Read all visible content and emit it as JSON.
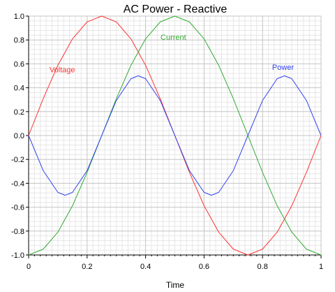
{
  "chart_data": {
    "type": "line",
    "title": "AC Power - Reactive",
    "xlabel": "Time",
    "ylabel": "",
    "xlim": [
      0,
      1
    ],
    "ylim": [
      -1.0,
      1.0
    ],
    "x_ticks": [
      0,
      0.2,
      0.4,
      0.6,
      0.8,
      1
    ],
    "x_tick_labels": [
      "0",
      "0.2",
      "0.4",
      "0.6",
      "0.8",
      "1"
    ],
    "y_ticks": [
      1.0,
      0.8,
      0.6,
      0.4,
      0.2,
      0.0,
      -0.2,
      -0.4,
      -0.6,
      -0.8,
      -1.0
    ],
    "y_tick_labels": [
      "1.0",
      "0.8",
      "0.6",
      "0.4",
      "0.2",
      "0.0",
      "-0.2",
      "-0.4",
      "-0.6",
      "-0.8",
      "-1.0"
    ],
    "grid": true,
    "legend": "none",
    "series": [
      {
        "name": "Voltage",
        "color": "#ff3333",
        "label_anchor": {
          "x": 0.115,
          "y": 0.53
        },
        "x": [
          0,
          0.05,
          0.1,
          0.15,
          0.2,
          0.25,
          0.3,
          0.35,
          0.4,
          0.45,
          0.5,
          0.55,
          0.6,
          0.65,
          0.7,
          0.75,
          0.8,
          0.85,
          0.9,
          0.95,
          1
        ],
        "values": [
          0,
          0.309,
          0.588,
          0.809,
          0.951,
          1.0,
          0.951,
          0.809,
          0.588,
          0.309,
          0,
          -0.309,
          -0.588,
          -0.809,
          -0.951,
          -1.0,
          -0.951,
          -0.809,
          -0.588,
          -0.309,
          0
        ]
      },
      {
        "name": "Current",
        "color": "#33aa33",
        "label_anchor": {
          "x": 0.495,
          "y": 0.8
        },
        "x": [
          0,
          0.05,
          0.1,
          0.15,
          0.2,
          0.25,
          0.3,
          0.35,
          0.4,
          0.45,
          0.5,
          0.55,
          0.6,
          0.65,
          0.7,
          0.75,
          0.8,
          0.85,
          0.9,
          0.95,
          1
        ],
        "values": [
          -1.0,
          -0.951,
          -0.809,
          -0.588,
          -0.309,
          0,
          0.309,
          0.588,
          0.809,
          0.951,
          1.0,
          0.951,
          0.809,
          0.588,
          0.309,
          0,
          -0.309,
          -0.588,
          -0.809,
          -0.951,
          -1.0
        ]
      },
      {
        "name": "Power",
        "color": "#3344ee",
        "label_anchor": {
          "x": 0.87,
          "y": 0.55
        },
        "x": [
          0,
          0.05,
          0.1,
          0.125,
          0.15,
          0.2,
          0.25,
          0.3,
          0.35,
          0.375,
          0.4,
          0.45,
          0.5,
          0.55,
          0.6,
          0.625,
          0.65,
          0.7,
          0.75,
          0.8,
          0.85,
          0.875,
          0.9,
          0.95,
          1
        ],
        "values": [
          0,
          -0.294,
          -0.476,
          -0.5,
          -0.476,
          -0.294,
          0,
          0.294,
          0.476,
          0.5,
          0.476,
          0.294,
          0,
          -0.294,
          -0.476,
          -0.5,
          -0.476,
          -0.294,
          0,
          0.294,
          0.476,
          0.5,
          0.476,
          0.294,
          0
        ]
      }
    ]
  }
}
